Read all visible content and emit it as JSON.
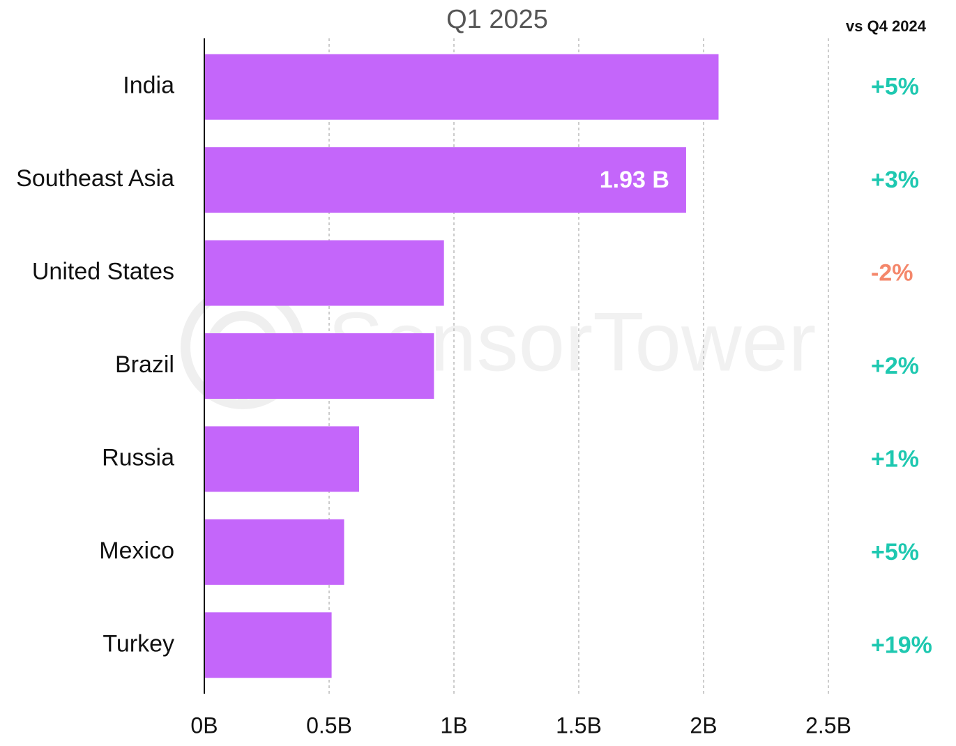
{
  "chart_data": {
    "type": "bar",
    "orientation": "horizontal",
    "title": "Q1 2025",
    "categories": [
      "India",
      "Southeast Asia",
      "United States",
      "Brazil",
      "Russia",
      "Mexico",
      "Turkey"
    ],
    "values": [
      2.06,
      1.93,
      0.96,
      0.92,
      0.62,
      0.56,
      0.51
    ],
    "value_labels": [
      null,
      "1.93 B",
      null,
      null,
      null,
      null,
      null
    ],
    "color": "#c466fa",
    "xlim": [
      0,
      2.5
    ],
    "xticks": [
      {
        "value": 0,
        "label": "0B"
      },
      {
        "value": 0.5,
        "label": "0.5B"
      },
      {
        "value": 1,
        "label": "1B"
      },
      {
        "value": 1.5,
        "label": "1.5B"
      },
      {
        "value": 2,
        "label": "2B"
      },
      {
        "value": 2.5,
        "label": "2.5B"
      }
    ],
    "grid": true,
    "watermark": "SensorTower",
    "changes": {
      "title": "vs Q4 2024",
      "values": [
        5,
        3,
        -2,
        2,
        1,
        5,
        19
      ],
      "value_labels": [
        "+5%",
        "+3%",
        "-2%",
        "+2%",
        "+1%",
        "+5%",
        "+19%"
      ],
      "positive_color": "#1ec8b0",
      "negative_color": "#f4876b"
    }
  }
}
